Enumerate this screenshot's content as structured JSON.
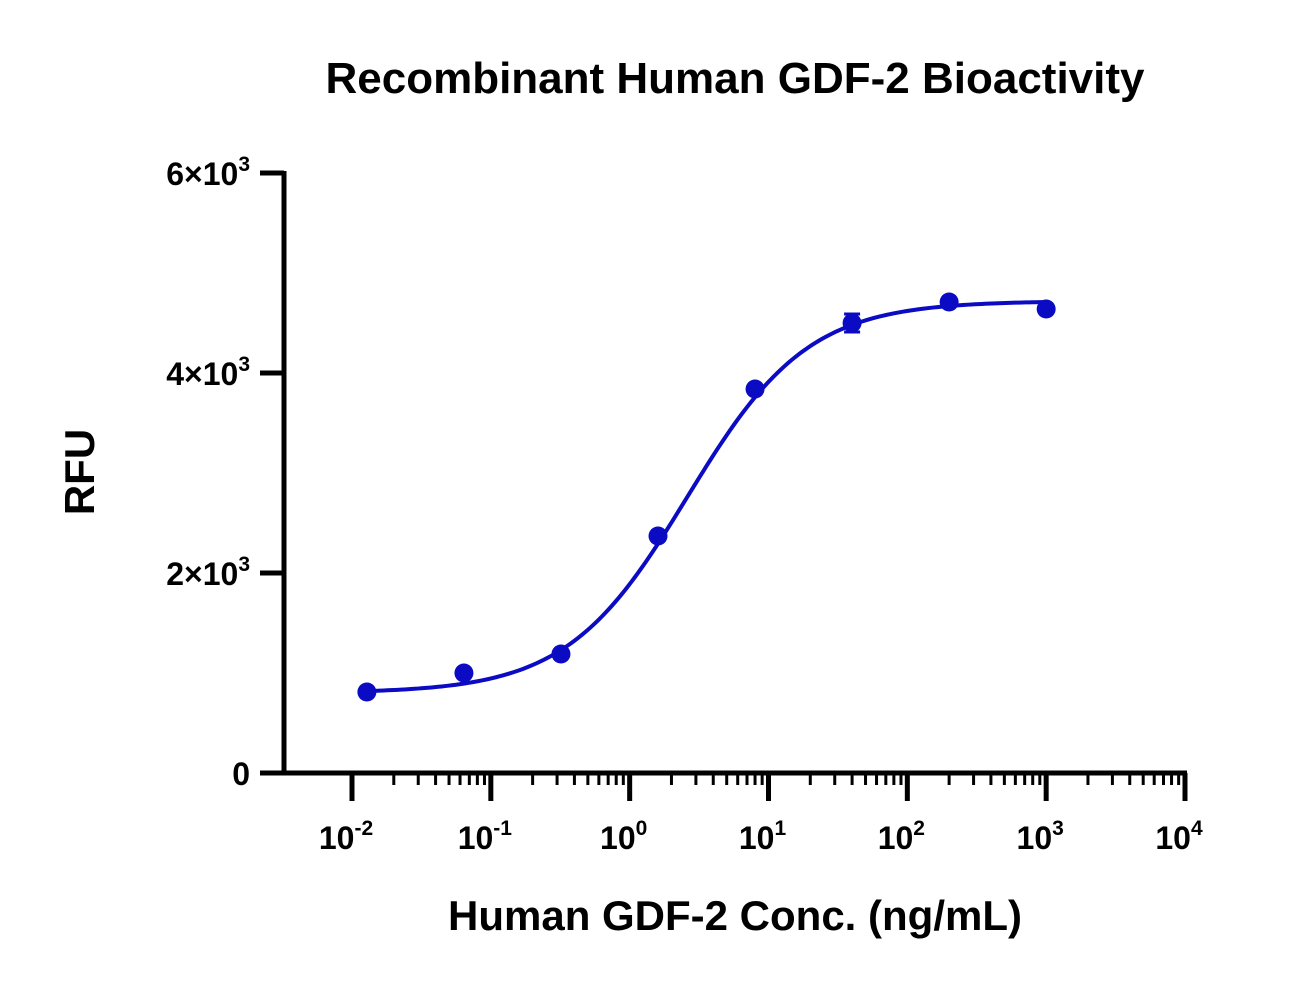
{
  "chart_data": {
    "type": "scatter",
    "title": "Recombinant Human GDF-2 Bioactivity",
    "xlabel": "Human GDF-2 Conc. (ng/mL)",
    "ylabel": "RFU",
    "x_scale": "log",
    "xlim": [
      0.01,
      10000
    ],
    "ylim": [
      0,
      6000
    ],
    "x_ticks": [
      {
        "value": 0.01,
        "base": "10",
        "exp": "-2"
      },
      {
        "value": 0.1,
        "base": "10",
        "exp": "-1"
      },
      {
        "value": 1,
        "base": "10",
        "exp": "0"
      },
      {
        "value": 10,
        "base": "10",
        "exp": "1"
      },
      {
        "value": 100,
        "base": "10",
        "exp": "2"
      },
      {
        "value": 1000,
        "base": "10",
        "exp": "3"
      },
      {
        "value": 10000,
        "base": "10",
        "exp": "4"
      }
    ],
    "y_ticks": [
      {
        "value": 0,
        "mant": "0",
        "exp": ""
      },
      {
        "value": 2000,
        "mant": "2×10",
        "exp": "3"
      },
      {
        "value": 4000,
        "mant": "4×10",
        "exp": "3"
      },
      {
        "value": 6000,
        "mant": "6×10",
        "exp": "3"
      }
    ],
    "series": [
      {
        "color": "#0b0bc4",
        "points": [
          {
            "x": 0.0128,
            "y": 810,
            "err": 0
          },
          {
            "x": 0.064,
            "y": 1000,
            "err": 0
          },
          {
            "x": 0.32,
            "y": 1190,
            "err": 0
          },
          {
            "x": 1.6,
            "y": 2370,
            "err": 0
          },
          {
            "x": 8,
            "y": 3840,
            "err": 0
          },
          {
            "x": 40,
            "y": 4500,
            "err": 90
          },
          {
            "x": 200,
            "y": 4710,
            "err": 0
          },
          {
            "x": 1000,
            "y": 4640,
            "err": 0
          }
        ],
        "fit": {
          "type": "4PL",
          "bottom": 800,
          "top": 4720,
          "ec50": 2.6,
          "hill": 1.0,
          "x_min": 0.0128,
          "x_max": 1000
        }
      }
    ],
    "grid": false,
    "legend": "none"
  }
}
